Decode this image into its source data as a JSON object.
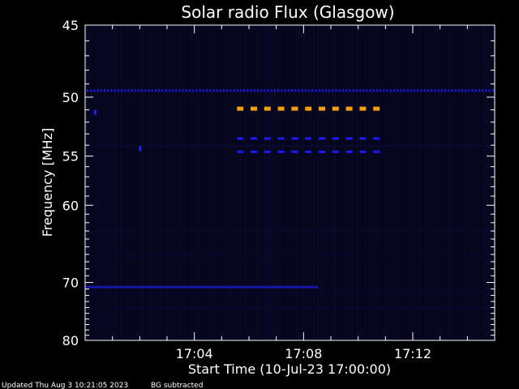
{
  "chart_data": {
    "type": "heatmap",
    "title": "Solar radio Flux (Glasgow)",
    "xlabel": "Start Time (10-Jul-23 17:00:00)",
    "ylabel": "Frequency [MHz]",
    "x_unit": "minutes after 17:00:00",
    "xlim": [
      0,
      15
    ],
    "ylim": [
      45,
      80
    ],
    "y_scale": "reciprocal (frequency increases downward)",
    "x_ticks": [
      {
        "value": 4,
        "label": "17:04"
      },
      {
        "value": 8,
        "label": "17:08"
      },
      {
        "value": 12,
        "label": "17:12"
      }
    ],
    "y_ticks": [
      {
        "value": 45,
        "label": "45"
      },
      {
        "value": 50,
        "label": "50"
      },
      {
        "value": 55,
        "label": "55"
      },
      {
        "value": 60,
        "label": "60"
      },
      {
        "value": 70,
        "label": "70"
      },
      {
        "value": 80,
        "label": "80"
      }
    ],
    "background_color": "#000000",
    "plot_background_color": "#05051c",
    "bands": [
      {
        "freq": 49.5,
        "x_start": 0,
        "x_end": 15,
        "style": "dashed",
        "level": "low",
        "color": "#1a1aff"
      },
      {
        "freq": 50.9,
        "x_start": 5.5,
        "x_end": 11.2,
        "style": "dashed",
        "level": "high",
        "color": "#f5a000"
      },
      {
        "freq": 53.4,
        "x_start": 5.5,
        "x_end": 11.2,
        "style": "dashed",
        "level": "low",
        "color": "#1a1aff"
      },
      {
        "freq": 54.6,
        "x_start": 5.5,
        "x_end": 11.2,
        "style": "dashed",
        "level": "low",
        "color": "#1a1aff"
      },
      {
        "freq": 70.7,
        "x_start": 0,
        "x_end": 8.5,
        "style": "solid",
        "level": "weak",
        "color": "#1a1acc"
      }
    ],
    "spots": [
      {
        "freq": 51.2,
        "x": 0.35,
        "color": "#2020ff"
      },
      {
        "freq": 54.3,
        "x": 2.0,
        "color": "#2020ff"
      }
    ]
  },
  "footer": {
    "updated": "Updated Thu Aug  3 10:21:05 2023",
    "note": "BG subtracted"
  }
}
